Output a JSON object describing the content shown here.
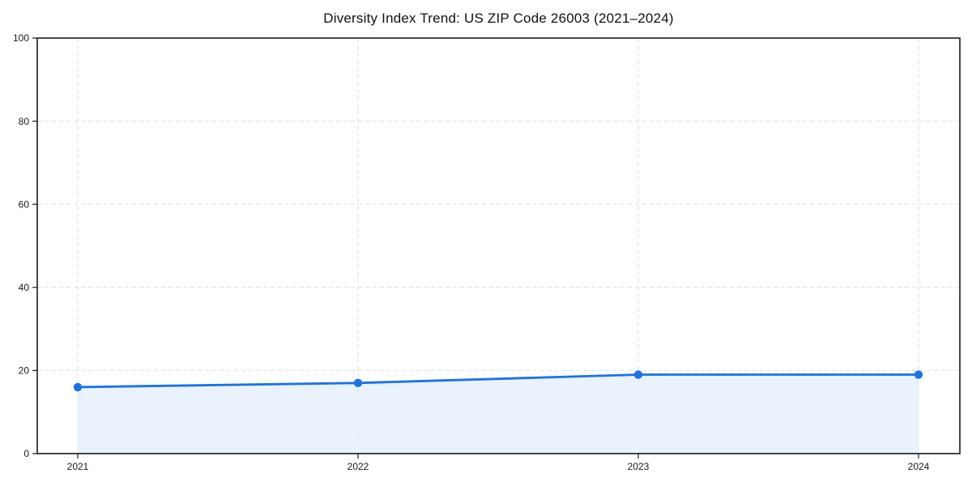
{
  "chart_data": {
    "type": "area",
    "title": "Diversity Index Trend: US ZIP Code 26003 (2021–2024)",
    "x": [
      "2021",
      "2022",
      "2023",
      "2024"
    ],
    "series": [
      {
        "name": "Diversity Index",
        "values": [
          16,
          17,
          19,
          19
        ]
      }
    ],
    "xlabel": "",
    "ylabel": "",
    "ylim": [
      0,
      100
    ],
    "yticks": [
      0,
      20,
      40,
      60,
      80,
      100
    ],
    "grid": true,
    "grid_style": "dashed",
    "legend_position": "none",
    "marker": "circle",
    "colors": {
      "line": "#1a73e8",
      "marker": "#1a73e8",
      "fill": "#e8f1fd",
      "grid": "#dedede",
      "spine": "#1a1a1a",
      "tick_text": "#1a1a1a",
      "title_text": "#111111",
      "background": "#ffffff"
    }
  }
}
